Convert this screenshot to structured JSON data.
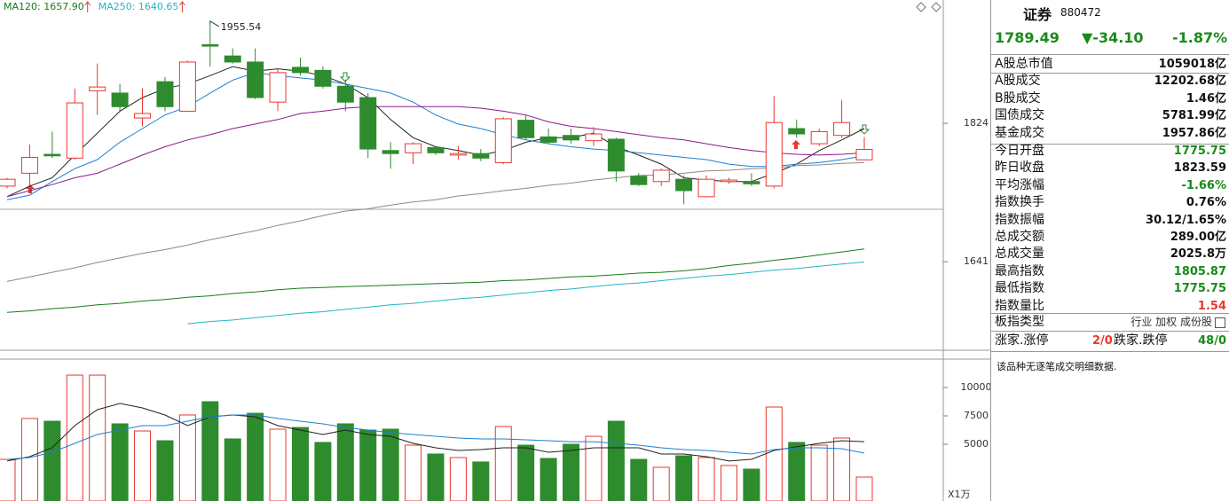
{
  "chart_data": [
    {
      "type": "candlestick",
      "up_color": "#e8372f",
      "down_color": "#2e8b2e",
      "ylim": [
        1524,
        1987
      ],
      "yticks": [
        1824,
        1641
      ],
      "open": [
        1741,
        1758,
        1783,
        1778,
        1867,
        1864,
        1831,
        1879,
        1840,
        1928,
        1913,
        1905,
        1852,
        1898,
        1894,
        1873,
        1858,
        1788,
        1785,
        1792,
        1782,
        1784,
        1772,
        1828,
        1806,
        1808,
        1801,
        1803,
        1754,
        1747,
        1750,
        1727,
        1747,
        1747,
        1741,
        1817,
        1797,
        1808,
        1775.75
      ],
      "close": [
        1750,
        1779,
        1781,
        1851,
        1872,
        1846,
        1837,
        1846,
        1905,
        1926,
        1905,
        1858,
        1891,
        1891,
        1873,
        1852,
        1790,
        1784,
        1797,
        1785,
        1784,
        1778,
        1830,
        1805,
        1799,
        1802,
        1810,
        1761,
        1743,
        1762,
        1735,
        1750,
        1749,
        1744,
        1825,
        1810,
        1813,
        1825,
        1789.49
      ],
      "high": [
        1752,
        1796,
        1813,
        1870,
        1903,
        1876,
        1870,
        1885,
        1907,
        1955.54,
        1923,
        1923,
        1896,
        1911,
        1899,
        1882,
        1864,
        1799,
        1799,
        1794,
        1794,
        1790,
        1832,
        1835,
        1817,
        1817,
        1819,
        1805,
        1758,
        1764,
        1755,
        1755,
        1752,
        1758,
        1860,
        1829,
        1817,
        1855,
        1805.87
      ],
      "low": [
        1738,
        1741,
        1778,
        1776,
        1835,
        1840,
        1820,
        1840,
        1840,
        1899,
        1903,
        1856,
        1840,
        1887,
        1870,
        1840,
        1778,
        1764,
        1770,
        1782,
        1776,
        1774,
        1770,
        1802,
        1797,
        1797,
        1794,
        1747,
        1741,
        1741,
        1717,
        1727,
        1744,
        1741,
        1738,
        1805,
        1794,
        1805,
        1775.75
      ],
      "series": [
        {
          "color": "#222222",
          "values": [
            1727,
            1741,
            1752,
            1782,
            1811,
            1840,
            1858,
            1870,
            1876,
            1887,
            1899,
            1893,
            1896,
            1893,
            1887,
            1876,
            1858,
            1829,
            1805,
            1793,
            1788,
            1782,
            1788,
            1799,
            1805,
            1805,
            1811,
            1793,
            1782,
            1770,
            1752,
            1749,
            1747,
            1747,
            1758,
            1770,
            1788,
            1802,
            1817
          ]
        },
        {
          "color": "#1e7fd0",
          "values": [
            1723,
            1729,
            1747,
            1764,
            1776,
            1799,
            1817,
            1835,
            1846,
            1864,
            1881,
            1891,
            1887,
            1884,
            1881,
            1876,
            1870,
            1864,
            1852,
            1835,
            1823,
            1817,
            1809,
            1802,
            1797,
            1793,
            1790,
            1788,
            1785,
            1782,
            1779,
            1776,
            1770,
            1767,
            1767,
            1770,
            1772,
            1776,
            1781
          ]
        },
        {
          "color": "#8b1a8b",
          "values": [
            1727,
            1735,
            1743,
            1752,
            1758,
            1770,
            1782,
            1793,
            1802,
            1809,
            1817,
            1823,
            1829,
            1837,
            1840,
            1844,
            1846,
            1846,
            1846,
            1846,
            1846,
            1844,
            1840,
            1835,
            1826,
            1820,
            1817,
            1813,
            1809,
            1805,
            1802,
            1797,
            1792,
            1788,
            1785,
            1783,
            1782,
            1783,
            1785
          ]
        },
        {
          "color": "#8a8a8a",
          "values": [
            1615,
            1621,
            1627,
            1633,
            1640,
            1646,
            1652,
            1657,
            1663,
            1670,
            1676,
            1682,
            1689,
            1695,
            1702,
            1708,
            1711,
            1716,
            1720,
            1723,
            1728,
            1731,
            1735,
            1738,
            1742,
            1745,
            1749,
            1752,
            1755,
            1756,
            1758,
            1761,
            1762,
            1764,
            1765,
            1768,
            1769,
            1771,
            1772
          ]
        },
        {
          "name": "MA120: 1657.90",
          "color": "#1a7a1a",
          "values": [
            1574,
            1576,
            1579,
            1581,
            1584,
            1586,
            1589,
            1591,
            1594,
            1596,
            1599,
            1601,
            1604,
            1606,
            1607,
            1608,
            1609,
            1610,
            1611,
            1612,
            1613,
            1614,
            1616,
            1617,
            1619,
            1621,
            1622,
            1624,
            1626,
            1627,
            1629,
            1632,
            1636,
            1639,
            1643,
            1646,
            1650,
            1654,
            1657.9
          ]
        },
        {
          "name": "MA250: 1640.65",
          "color": "#20b6c8",
          "values": [
            null,
            null,
            null,
            null,
            null,
            null,
            null,
            null,
            1559,
            1562,
            1564,
            1567,
            1570,
            1573,
            1575,
            1578,
            1581,
            1584,
            1586,
            1589,
            1592,
            1594,
            1597,
            1600,
            1603,
            1605,
            1608,
            1611,
            1613,
            1616,
            1619,
            1622,
            1624,
            1627,
            1630,
            1632,
            1635,
            1638,
            1640.65
          ]
        }
      ]
    },
    {
      "type": "bar",
      "unit_label": "X1万",
      "ylim": [
        0,
        12500
      ],
      "yticks": [
        10000,
        7500,
        5000
      ],
      "values": [
        3670,
        7270,
        7030,
        11090,
        11090,
        6800,
        6170,
        5310,
        7580,
        8750,
        5470,
        7730,
        6330,
        6480,
        5160,
        6800,
        6250,
        6330,
        4920,
        4140,
        3830,
        3440,
        6560,
        4920,
        3750,
        5000,
        5700,
        7030,
        3670,
        2970,
        3980,
        3830,
        3130,
        2810,
        8280,
        5160,
        4920,
        5550,
        2110
      ],
      "series": [
        {
          "color": "#222222",
          "values": [
            3520,
            3910,
            4690,
            6640,
            8050,
            8590,
            8200,
            7580,
            6640,
            7420,
            7580,
            7420,
            6640,
            6250,
            5860,
            6250,
            5860,
            5700,
            5080,
            4690,
            4450,
            4530,
            4690,
            4690,
            4300,
            4450,
            4690,
            4690,
            4690,
            4140,
            4140,
            3910,
            3520,
            3670,
            4450,
            4770,
            5080,
            5310,
            5230
          ]
        },
        {
          "color": "#1e7fd0",
          "values": [
            3670,
            3830,
            4300,
            5080,
            5860,
            6250,
            6640,
            6640,
            7030,
            7420,
            7580,
            7580,
            7270,
            7030,
            6800,
            6480,
            6250,
            6020,
            5860,
            5700,
            5550,
            5470,
            5470,
            5390,
            5310,
            5230,
            5230,
            5080,
            4920,
            4690,
            4530,
            4450,
            4300,
            4140,
            4530,
            4690,
            4690,
            4610,
            4220
          ]
        }
      ]
    }
  ],
  "panel": {
    "name": "证券",
    "code": "880472",
    "price": "1789.49",
    "change": "▼-34.10",
    "pct": "-1.87%",
    "rows": [
      {
        "label": "A股总市值",
        "value": "1059018亿",
        "color": "#111"
      },
      {
        "label": "A股成交",
        "value": "12202.68亿",
        "color": "#111"
      },
      {
        "label": "B股成交",
        "value": "1.46亿",
        "color": "#111"
      },
      {
        "label": "国债成交",
        "value": "5781.99亿",
        "color": "#111"
      },
      {
        "label": "基金成交",
        "value": "1957.86亿",
        "color": "#111"
      },
      {
        "label": "今日开盘",
        "value": "1775.75",
        "color": "#1a8a1a"
      },
      {
        "label": "昨日收盘",
        "value": "1823.59",
        "color": "#111"
      },
      {
        "label": "平均涨幅",
        "value": "-1.66%",
        "color": "#1a8a1a"
      },
      {
        "label": "指数换手",
        "value": "0.76%",
        "color": "#111"
      },
      {
        "label": "指数振幅",
        "value": "30.12/1.65%",
        "color": "#111"
      },
      {
        "label": "总成交额",
        "value": "289.00亿",
        "color": "#111"
      },
      {
        "label": "总成交量",
        "value": "2025.8万",
        "color": "#111"
      },
      {
        "label": "最高指数",
        "value": "1805.87",
        "color": "#1a8a1a"
      },
      {
        "label": "最低指数",
        "value": "1775.75",
        "color": "#1a8a1a"
      },
      {
        "label": "指数量比",
        "value": "1.54",
        "color": "#e8372f"
      }
    ],
    "type_label": "板指类型",
    "type_value": "行业 加权 成份股",
    "up_label": "涨家.涨停",
    "up_value": "2/0",
    "down_label": "跌家.跌停",
    "down_value": "48/0",
    "note": "该品种无逐笔成交明细数据."
  }
}
